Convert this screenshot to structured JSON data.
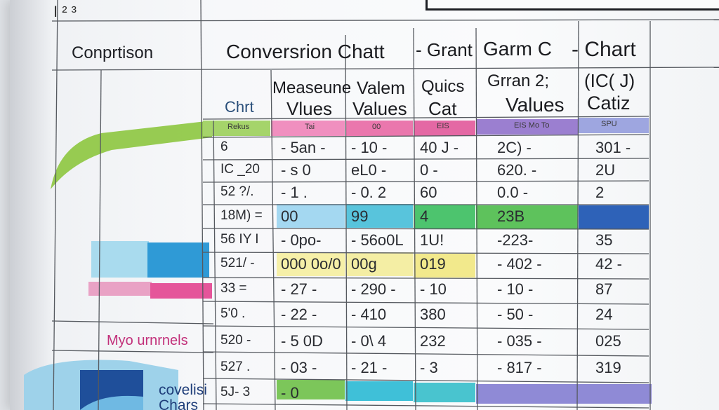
{
  "header": {
    "corner_marks": "I  ²  ³",
    "left_title": "Conprtison",
    "main_title": "Conversrion  Chatt",
    "gantt_label": "- Grant",
    "gantt_title": "Garm C",
    "chart_label": "- Chart"
  },
  "subheaders": {
    "chart_col": "Chrt",
    "measure_1": "Measeune",
    "measure_2": "Vlues",
    "valem_1": "Valem",
    "valem_2": "Values",
    "quics_1": "Quics",
    "quics_2": "Cat",
    "gantt_1": "Grran 2;",
    "gantt_2": "Values",
    "cat_1": "(IC( J)",
    "cat_2": "Catiz"
  },
  "header_band": [
    "Rekus",
    "Tai",
    "00",
    "EIS",
    "EIS Mo To",
    "SPU"
  ],
  "rows": [
    [
      "6",
      "- 5an -",
      "- 10 -",
      "40 J -",
      "2C) -",
      "301 -"
    ],
    [
      "IC  _20",
      "- s 0",
      "eL0 -",
      "0 -",
      "620. -",
      "2U"
    ],
    [
      "52 ?/.",
      "- 1 .",
      "- 0.  2",
      "60",
      "0.0 -",
      "2"
    ],
    [
      "18M) =",
      "00",
      "99",
      "4",
      "23B",
      ""
    ],
    [
      "56 IY I",
      "- 0po-",
      "- 56o0L",
      "1U!",
      "-223-",
      "35"
    ],
    [
      "521/ -",
      "000 0o/0",
      "00g",
      "019",
      "- 402 -",
      "42 -"
    ],
    [
      "33 =",
      "- 27 -",
      "- 290 -",
      "- 10",
      "- 10 -",
      "87"
    ],
    [
      "5'0 .",
      "- 22 -",
      "- 410",
      "380",
      "- 50 -",
      "24"
    ],
    [
      "520 -",
      "- 5 0D",
      "- 0\\ 4",
      "232",
      "- 035 -",
      "025"
    ],
    [
      "527 .",
      "- 03 -",
      "- 21 -",
      "- 3",
      "- 817 -",
      "319"
    ],
    [
      "5J- 3",
      "- 0",
      "",
      "",
      "",
      ""
    ]
  ],
  "left_panel": {
    "label_pink": "Myo urnrnels",
    "label_bottom_1": "covelisi",
    "label_bottom_2": "Chars"
  },
  "colors": {
    "green": "#8dc63f",
    "pink": "#ec6aa5",
    "purple": "#9b7fd0",
    "blue_light": "#8fd3ee",
    "blue": "#2f8fd3",
    "teal": "#46c2c9",
    "yellow": "#f5ec8c",
    "navy": "#1f4f9a",
    "violet": "#8e88d8"
  }
}
